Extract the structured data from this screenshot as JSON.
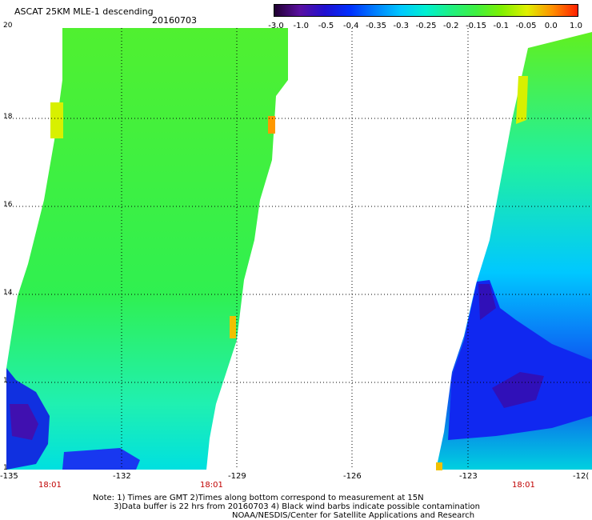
{
  "header": {
    "title": "ASCAT 25KM MLE-1 descending",
    "date": "20160703"
  },
  "colorbar": {
    "labels": [
      "-3.0",
      "-1.0",
      "-0.5",
      "-0.4",
      "-0.35",
      "-0.3",
      "-0.25",
      "-0.2",
      "-0.15",
      "-0.1",
      "-0.05",
      "0.0",
      "1.0"
    ],
    "colors": [
      "#200030",
      "#5a10a0",
      "#2010d0",
      "#0030ff",
      "#0080ff",
      "#00c8ff",
      "#00f0d0",
      "#20f080",
      "#40f040",
      "#80f000",
      "#e0f000",
      "#ff9000",
      "#ff2000"
    ]
  },
  "map": {
    "lat_labels": [
      "20",
      "18",
      "16",
      "14",
      "1",
      "1"
    ],
    "lon_labels": [
      "-135",
      "-132",
      "-129",
      "-126",
      "-123",
      "-12("
    ],
    "time_labels": [
      "18:01",
      "18:01",
      "18:01"
    ]
  },
  "notes": [
    "Note: 1) Times are GMT 2)Times along bottom correspond to measurement at 15N",
    "3)Data buffer is 22 hrs from 20160703 4) Black wind barbs indicate possible contamination",
    "NOAA/NESDIS/Center for Satellite Applications and Research"
  ]
}
